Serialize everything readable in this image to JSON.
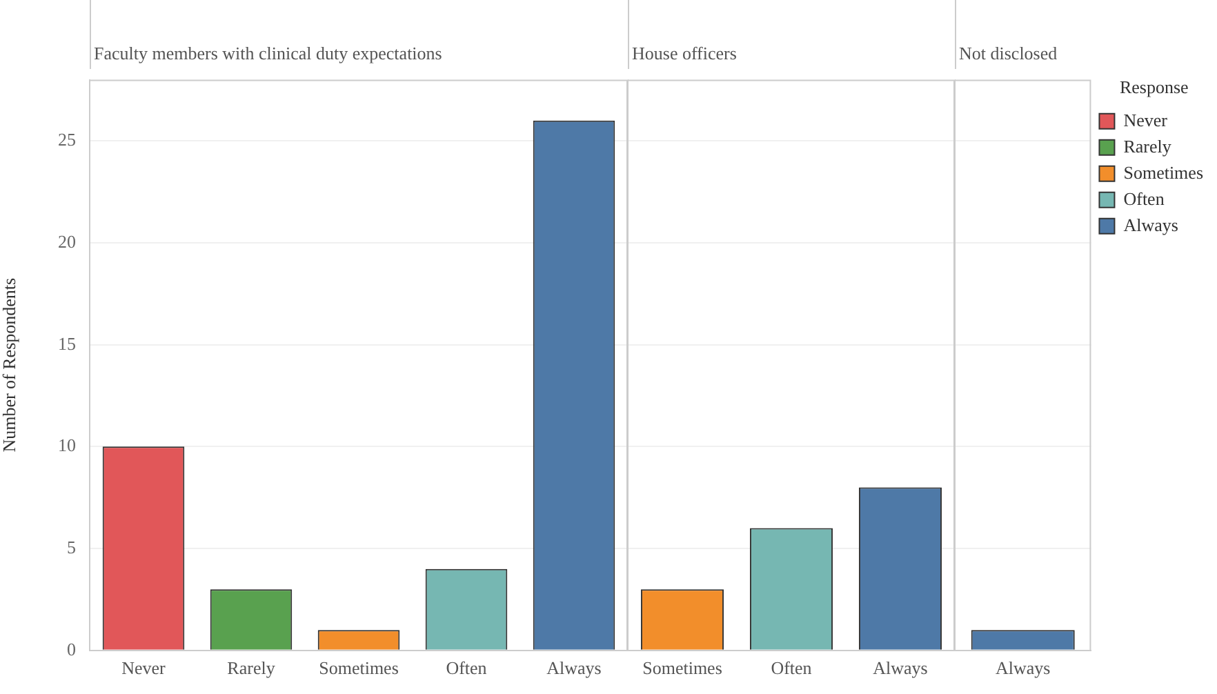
{
  "chart_data": [
    {
      "type": "bar",
      "title": "Faculty members with clinical duty expectations",
      "ylabel": "Number of Respondents",
      "categories": [
        "Never",
        "Rarely",
        "Sometimes",
        "Often",
        "Always"
      ],
      "values": [
        10,
        3,
        1,
        4,
        26
      ],
      "colors": [
        "#e15759",
        "#59a14f",
        "#f28e2b",
        "#76b7b2",
        "#4e79a7"
      ],
      "ylim": [
        0,
        28
      ],
      "yticks": [
        0,
        5,
        10,
        15,
        20,
        25
      ],
      "grid": "y",
      "legend": false
    },
    {
      "type": "bar",
      "title": "House officers",
      "categories": [
        "Sometimes",
        "Often",
        "Always"
      ],
      "values": [
        3,
        6,
        8
      ],
      "colors": [
        "#f28e2b",
        "#76b7b2",
        "#4e79a7"
      ],
      "ylim": [
        0,
        28
      ],
      "yticks": [
        0,
        5,
        10,
        15,
        20,
        25
      ],
      "grid": "y",
      "legend": false,
      "tick_labels": "x"
    },
    {
      "type": "bar",
      "title": "Not disclosed",
      "categories": [
        "Always"
      ],
      "stacked": true,
      "legend": "right",
      "legend_title": "Response",
      "ylim": [
        0,
        28
      ],
      "yticks": [
        0,
        5,
        10,
        15,
        20,
        25
      ],
      "grid": "y",
      "tick_labels": "x",
      "series": [
        {
          "name": "Never",
          "color": "#e15759",
          "values": [
            null
          ]
        },
        {
          "name": "Rarely",
          "color": "#59a14f",
          "values": [
            null
          ]
        },
        {
          "name": "Sometimes",
          "color": "#f28e2b",
          "values": [
            null
          ]
        },
        {
          "name": "Often",
          "color": "#76b7b2",
          "values": [
            null
          ]
        },
        {
          "name": "Always",
          "color": "#4e79a7",
          "values": [
            1
          ]
        }
      ]
    }
  ]
}
